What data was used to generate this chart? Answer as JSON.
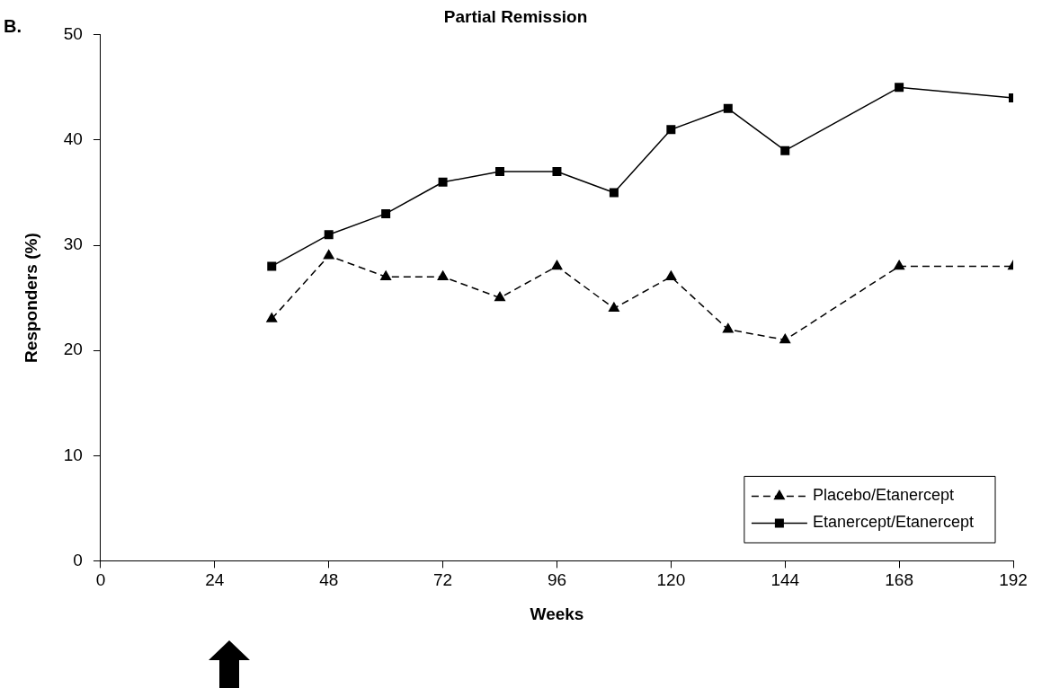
{
  "chart_data": {
    "type": "line",
    "title": "Partial Remission",
    "xlabel": "Weeks",
    "ylabel": "Responders (%)",
    "annotations": [
      "B."
    ],
    "x": [
      36,
      48,
      60,
      72,
      84,
      96,
      108,
      120,
      132,
      144,
      168,
      192
    ],
    "series": [
      {
        "name": "Placebo/Etanercept",
        "color": "#000000",
        "marker": "triangle",
        "line_style": "dashed",
        "values": [
          23,
          29,
          27,
          27,
          25,
          28,
          24,
          27,
          22,
          21,
          28,
          28
        ]
      },
      {
        "name": "Etanercept/Etanercept",
        "color": "#000000",
        "marker": "square",
        "line_style": "solid",
        "values": [
          28,
          31,
          33,
          36,
          37,
          37,
          35,
          41,
          43,
          39,
          45,
          44
        ]
      }
    ],
    "xlim": [
      0,
      192
    ],
    "xticks": [
      0,
      24,
      48,
      72,
      96,
      120,
      144,
      168,
      192
    ],
    "ylim": [
      0,
      50
    ],
    "yticks": [
      0,
      10,
      20,
      30,
      40,
      50
    ],
    "grid": false,
    "legend": "bottom right"
  }
}
